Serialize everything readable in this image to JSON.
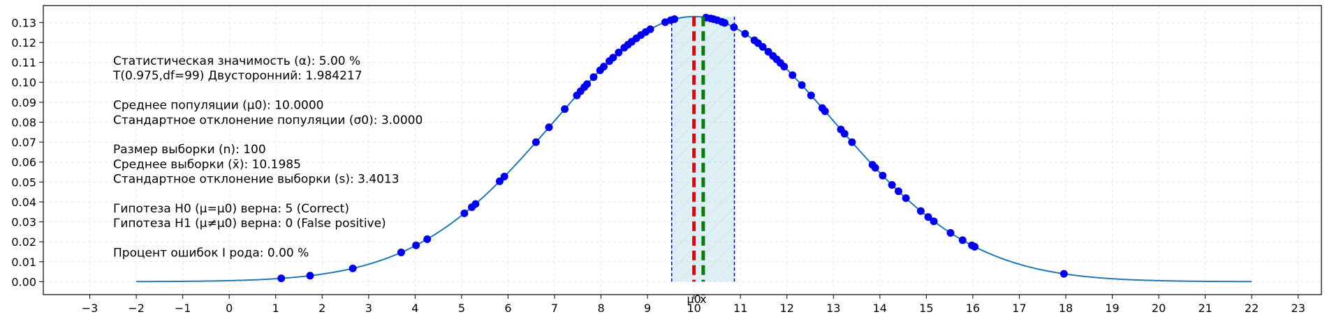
{
  "chart_data": {
    "type": "line",
    "title": "",
    "xlabel": "",
    "ylabel": "",
    "xlim": [
      -4.0,
      23.5
    ],
    "ylim": [
      -0.0065,
      0.1385
    ],
    "x_ticks": [
      -3,
      -2,
      -1,
      0,
      1,
      2,
      3,
      4,
      5,
      6,
      7,
      8,
      9,
      10,
      11,
      12,
      13,
      14,
      15,
      16,
      17,
      18,
      19,
      20,
      21,
      22,
      23
    ],
    "y_ticks": [
      0.0,
      0.01,
      0.02,
      0.03,
      0.04,
      0.05,
      0.06,
      0.07,
      0.08,
      0.09,
      0.1,
      0.11,
      0.12,
      0.13
    ],
    "grid": true,
    "curve": {
      "kind": "normal_pdf",
      "mean": 10.0,
      "sd": 3.0,
      "x_range": [
        -2,
        22
      ],
      "color": "#1f77b4"
    },
    "sample_points": [
      1.12,
      1.74,
      2.66,
      3.7,
      4.02,
      4.26,
      5.06,
      5.22,
      5.3,
      5.82,
      5.92,
      6.6,
      6.88,
      7.22,
      7.48,
      7.56,
      7.64,
      7.7,
      7.84,
      7.98,
      8.06,
      8.18,
      8.26,
      8.38,
      8.5,
      8.58,
      8.66,
      8.76,
      8.86,
      8.96,
      9.06,
      9.38,
      9.5,
      9.58,
      10.26,
      10.36,
      10.42,
      10.5,
      10.6,
      10.66,
      10.86,
      11.1,
      11.3,
      11.38,
      11.48,
      11.6,
      11.7,
      11.78,
      11.86,
      11.94,
      12.12,
      12.32,
      12.52,
      12.76,
      12.82,
      13.16,
      13.24,
      13.4,
      13.84,
      13.9,
      14.06,
      14.26,
      14.4,
      14.56,
      14.88,
      15.04,
      15.16,
      15.52,
      15.78,
      15.98,
      16.04,
      17.96
    ],
    "point_color": "#0000ee",
    "confidence_interval": {
      "low": 9.52,
      "high": 10.87,
      "fill": "#add8e6",
      "edge": "#0000cc"
    },
    "mu0_line": {
      "x": 10.0,
      "label": "μ0",
      "color": "#e8000b"
    },
    "xbar_line": {
      "x": 10.1985,
      "label": "x̄",
      "color": "#0b7a0b"
    }
  },
  "info": {
    "lines": [
      "Статистическая значимость (α): 5.00 %",
      "T(0.975,df=99) Двусторонний: 1.984217",
      "",
      "Среднее популяции (μ0): 10.0000",
      "Стандартное отклонение популяции (σ0): 3.0000",
      "",
      "Размер выборки (n): 100",
      "Среднее выборки (x̄): 10.1985",
      "Стандартное отклонение выборки (s): 3.4013",
      "",
      "Гипотеза H0 (μ=μ0) верна: 5 (Correct)",
      "Гипотеза H1 (μ≠μ0) верна: 0 (False positive)",
      "",
      "Процент ошибок I рода: 0.00 %"
    ]
  }
}
